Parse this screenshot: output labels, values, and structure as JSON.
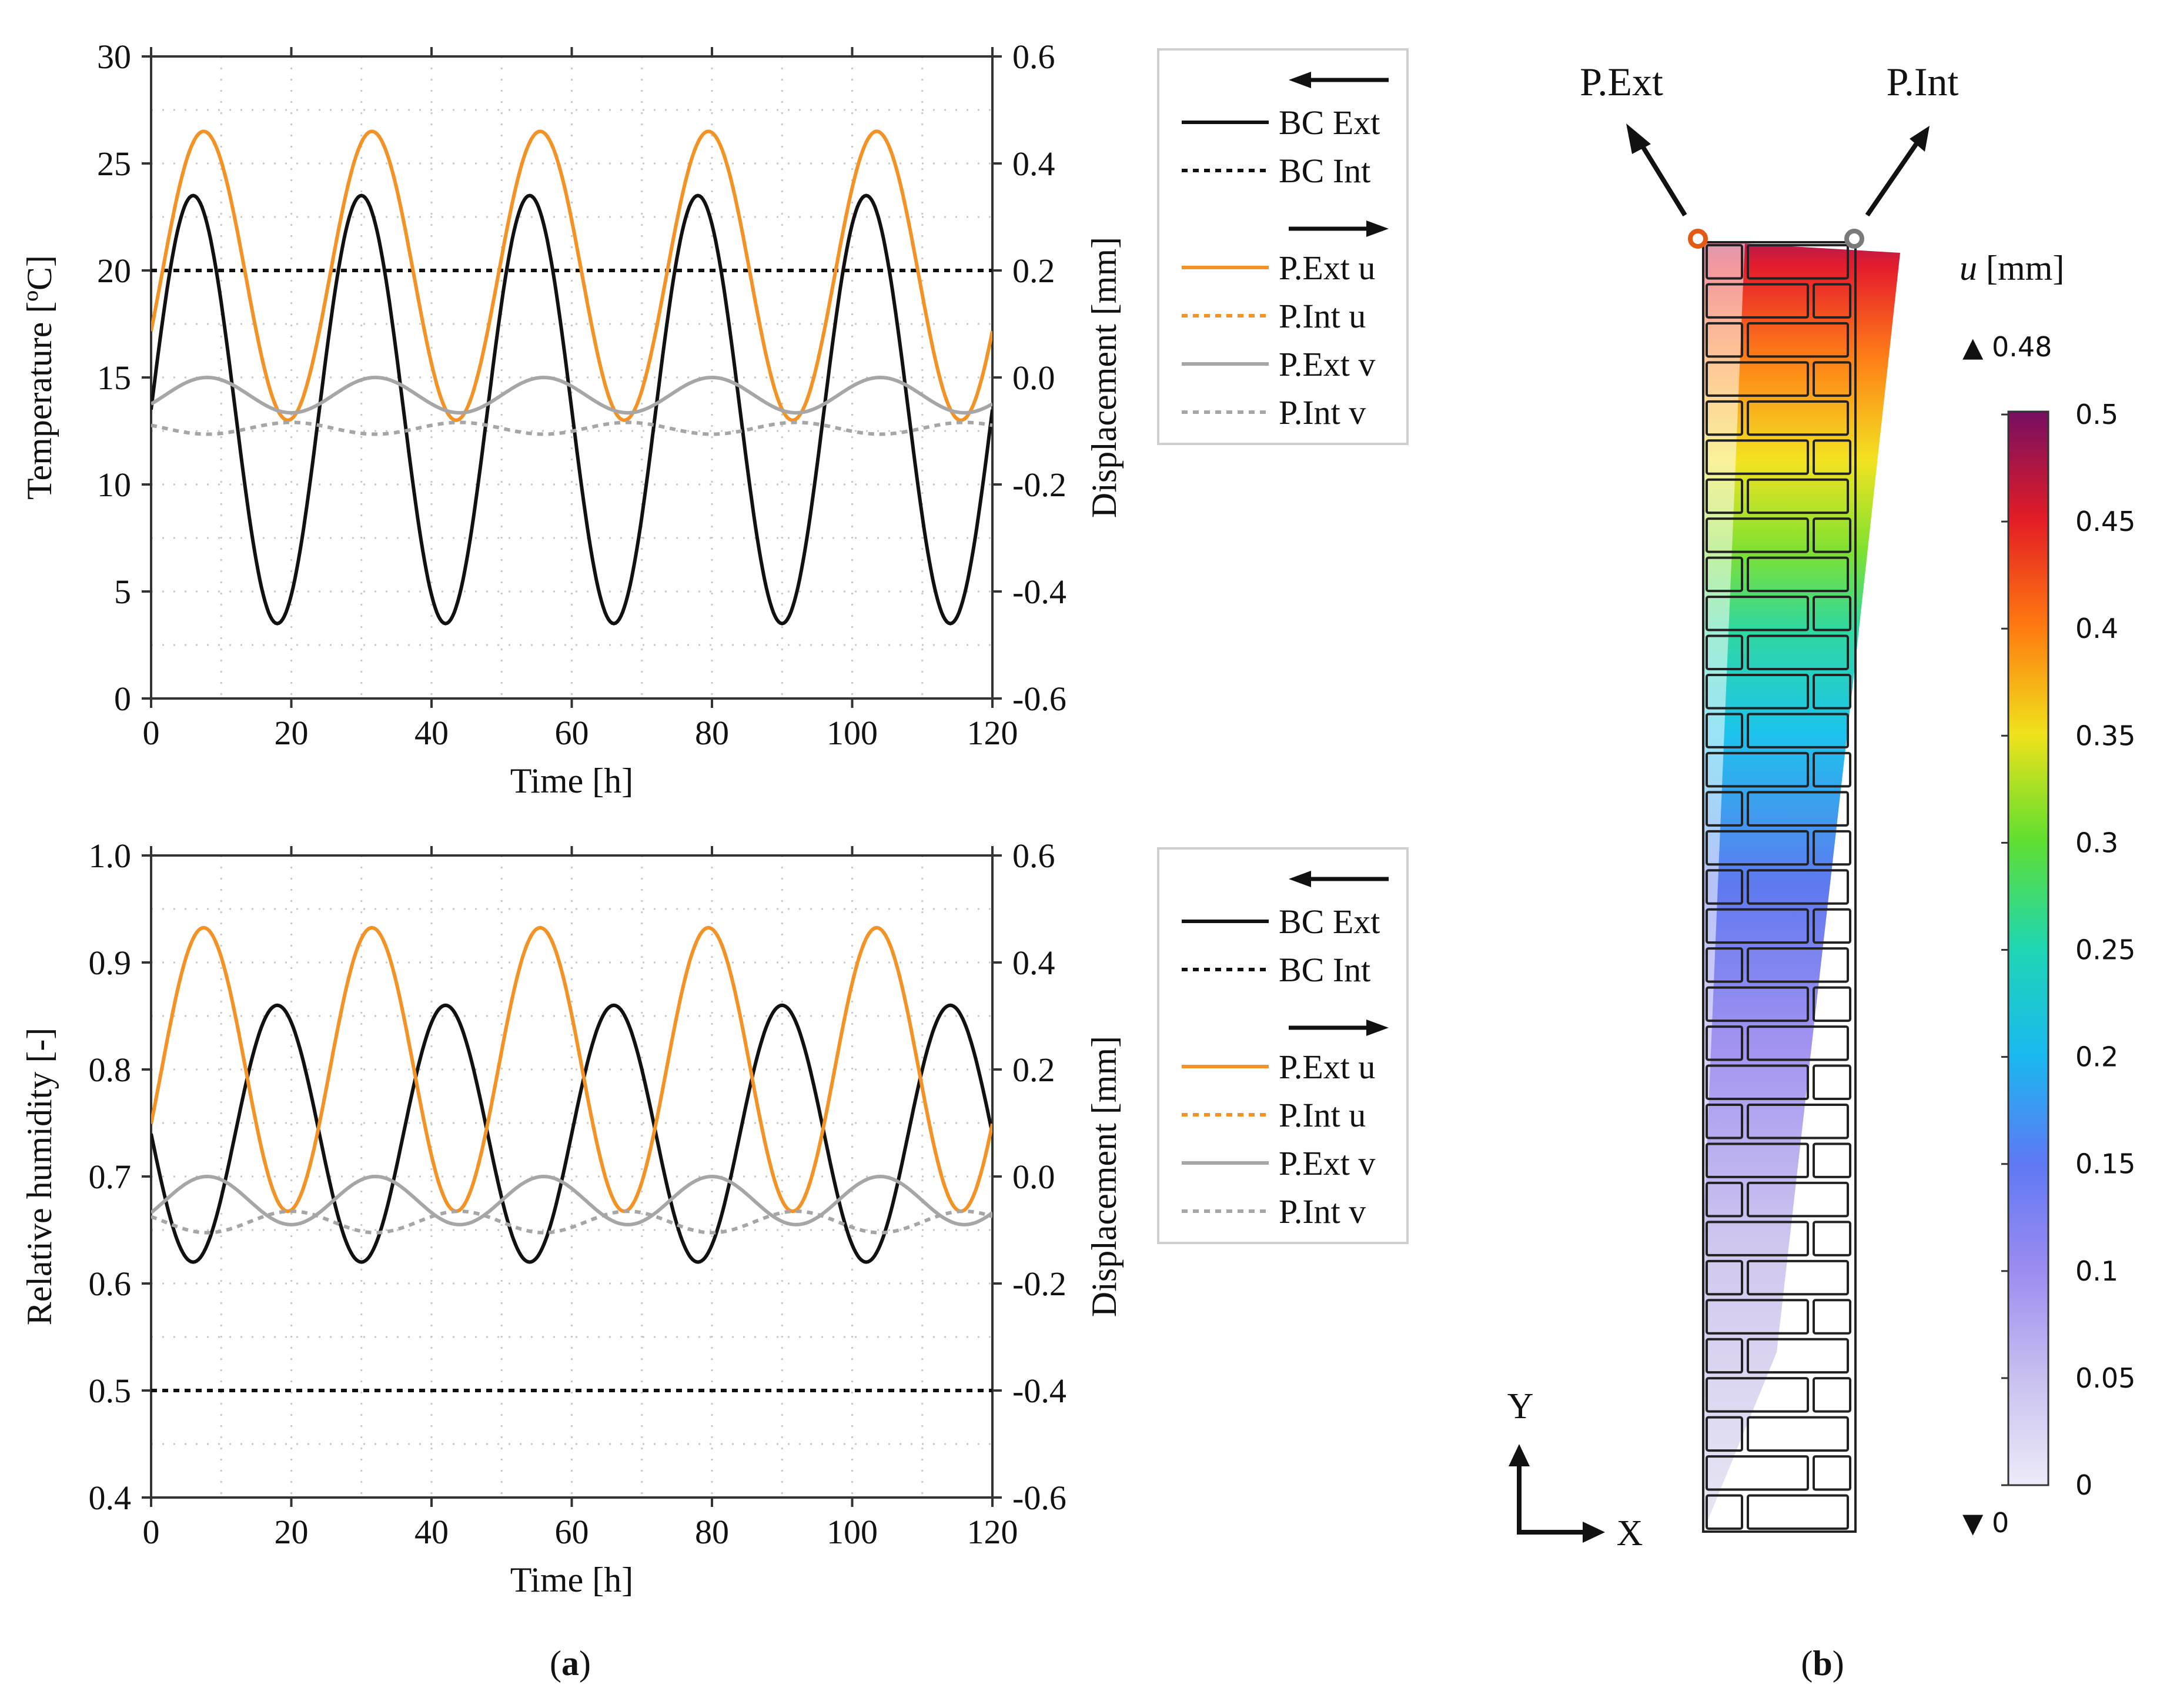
{
  "chart_data": [
    {
      "type": "line",
      "panel": "a-top",
      "xlabel": "Time [h]",
      "ylabel": "Temperature [ºC]",
      "y2label": "Displacement [mm]",
      "xlim": [
        0,
        120
      ],
      "ylim": [
        0,
        30
      ],
      "y2lim": [
        -0.6,
        0.6
      ],
      "xticks": [
        0,
        20,
        40,
        60,
        80,
        100,
        120
      ],
      "yticks": [
        0,
        5,
        10,
        15,
        20,
        25,
        30
      ],
      "y2ticks": [
        "-0.6",
        "-0.4",
        "-0.2",
        "0.0",
        "0.2",
        "0.4",
        "0.6"
      ],
      "legend": {
        "arrow_left": "←",
        "arrow_right": "→",
        "entries": [
          "BC Ext",
          "BC Int",
          "P.Ext u",
          "P.Int  u",
          "P.Ext v",
          "P.Int  v"
        ]
      },
      "series": [
        {
          "name": "BC Ext",
          "axis": "left",
          "style": "solid",
          "color": "#111111",
          "mean": 13.5,
          "amp": 10.0,
          "period": 24,
          "peak_t": 6
        },
        {
          "name": "BC Int",
          "axis": "left",
          "style": "dotted",
          "color": "#111111",
          "const": 20
        },
        {
          "name": "P.Ext u",
          "axis": "right",
          "style": "solid",
          "color": "#f39325",
          "mean": 0.19,
          "amp": 0.27,
          "period": 24,
          "peak_t": 7.5
        },
        {
          "name": "P.Int u",
          "axis": "right",
          "style": "dotted",
          "color": "#f39325",
          "overlaps": "P.Ext u"
        },
        {
          "name": "P.Ext v",
          "axis": "right",
          "style": "solid",
          "color": "#a6a6a6",
          "mean": -0.033,
          "amp": 0.033,
          "period": 24,
          "peak_t": 8
        },
        {
          "name": "P.Int v",
          "axis": "right",
          "style": "dotted",
          "color": "#a6a6a6",
          "mean": -0.095,
          "amp": 0.011,
          "period": 24,
          "peak_t": 20
        }
      ]
    },
    {
      "type": "line",
      "panel": "a-bottom",
      "xlabel": "Time [h]",
      "ylabel": "Relative humidity [-]",
      "y2label": "Displacement [mm]",
      "xlim": [
        0,
        120
      ],
      "ylim": [
        0.4,
        1.0
      ],
      "y2lim": [
        -0.6,
        0.6
      ],
      "xticks": [
        0,
        20,
        40,
        60,
        80,
        100,
        120
      ],
      "yticks": [
        "0.4",
        "0.5",
        "0.6",
        "0.7",
        "0.8",
        "0.9",
        "1.0"
      ],
      "y2ticks": [
        "-0.6",
        "-0.4",
        "-0.2",
        "0.0",
        "0.2",
        "0.4",
        "0.6"
      ],
      "legend": {
        "arrow_left": "←",
        "arrow_right": "→",
        "entries": [
          "BC Ext",
          "BC Int",
          "P.Ext u",
          "P.Int  u",
          "P.Ext v",
          "P.Int  v"
        ]
      },
      "series": [
        {
          "name": "BC Ext",
          "axis": "left",
          "style": "solid",
          "color": "#111111",
          "mean": 0.74,
          "amp": 0.12,
          "period": 24,
          "peak_t": 18
        },
        {
          "name": "BC Int",
          "axis": "left",
          "style": "dotted",
          "color": "#111111",
          "const": 0.5
        },
        {
          "name": "P.Ext u",
          "axis": "right",
          "style": "solid",
          "color": "#f39325",
          "mean": 0.2,
          "amp": 0.265,
          "period": 24,
          "peak_t": 7.5
        },
        {
          "name": "P.Int u",
          "axis": "right",
          "style": "dotted",
          "color": "#f39325",
          "overlaps": "P.Ext u"
        },
        {
          "name": "P.Ext v",
          "axis": "right",
          "style": "solid",
          "color": "#a6a6a6",
          "mean": -0.045,
          "amp": 0.045,
          "period": 24,
          "peak_t": 8
        },
        {
          "name": "P.Int v",
          "axis": "right",
          "style": "dotted",
          "color": "#a6a6a6",
          "mean": -0.085,
          "amp": 0.02,
          "period": 24,
          "peak_t": 20
        }
      ]
    },
    {
      "type": "heatmap",
      "panel": "b",
      "title": "u [mm]",
      "title_italic": "u",
      "title_rest": " [mm]",
      "max_label": "▲ 0.48",
      "min_label": "▼ 0",
      "colorbar_range": [
        0,
        0.5
      ],
      "colorbar_ticks": [
        "0",
        "0.05",
        "0.1",
        "0.15",
        "0.2",
        "0.25",
        "0.3",
        "0.35",
        "0.4",
        "0.45",
        "0.5"
      ],
      "point_ext": "P.Ext",
      "point_int": "P.Int",
      "axis_x": "X",
      "axis_y": "Y",
      "colors": {
        "ext_point": "#e35a12",
        "int_point": "#7a7a7a"
      }
    }
  ],
  "captions": {
    "a": "a",
    "b": "b"
  }
}
